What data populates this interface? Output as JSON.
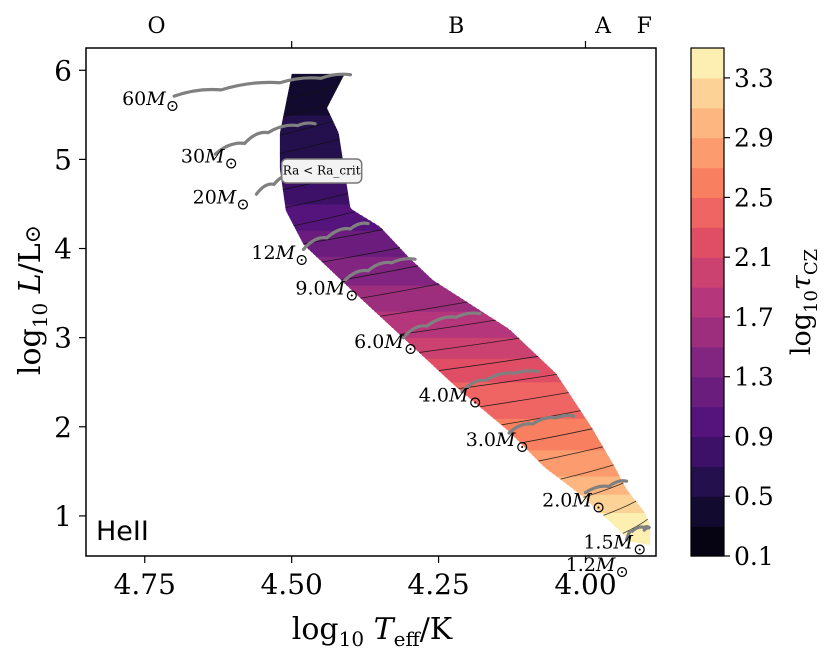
{
  "chart_data": {
    "type": "hr_diagram_heatmap",
    "title": "",
    "panel_label": "HeII",
    "xlabel": "log10 Teff/K",
    "ylabel": "log10 L/L⊙",
    "x_inverted": true,
    "xlim": [
      4.85,
      3.88
    ],
    "ylim": [
      0.55,
      6.25
    ],
    "xticks": [
      4.75,
      4.5,
      4.25,
      4.0
    ],
    "xtick_labels": [
      "4.75",
      "4.50",
      "4.25",
      "4.00"
    ],
    "yticks": [
      1,
      2,
      3,
      4,
      5,
      6
    ],
    "ytick_labels": [
      "1",
      "2",
      "3",
      "4",
      "5",
      "6"
    ],
    "spectral_types": {
      "labels": [
        "O",
        "B",
        "A",
        "F"
      ],
      "label_logT": [
        4.73,
        4.22,
        3.97,
        3.9
      ],
      "boundaries_logT": [
        4.5,
        4.0,
        3.86
      ]
    },
    "colorbar": {
      "label": "log10 τCZ",
      "min": 0.1,
      "max": 3.5,
      "levels": 17,
      "tick_values": [
        0.1,
        0.5,
        0.9,
        1.3,
        1.7,
        2.1,
        2.5,
        2.9,
        3.3
      ],
      "tick_labels": [
        "0.1",
        "0.5",
        "0.9",
        "1.3",
        "1.7",
        "2.1",
        "2.5",
        "2.9",
        "3.3"
      ]
    },
    "annotation": {
      "text": "Ra < Ra_crit",
      "logT": 4.5,
      "logL": 4.87
    },
    "tracks": [
      {
        "mass": "60",
        "label": "60M⊙",
        "label_logT": 4.74,
        "label_logL": 5.68,
        "points": [
          [
            4.7,
            5.71
          ],
          [
            4.62,
            5.78
          ],
          [
            4.52,
            5.86
          ],
          [
            4.45,
            5.91
          ],
          [
            4.4,
            5.95
          ]
        ]
      },
      {
        "mass": "30",
        "label": "30M⊙",
        "label_logT": 4.64,
        "label_logL": 5.03,
        "points": [
          [
            4.63,
            5.06
          ],
          [
            4.58,
            5.18
          ],
          [
            4.54,
            5.3
          ],
          [
            4.49,
            5.38
          ],
          [
            4.46,
            5.4
          ]
        ]
      },
      {
        "mass": "20",
        "label": "20M⊙",
        "label_logT": 4.62,
        "label_logL": 4.57,
        "points": [
          [
            4.56,
            4.61
          ],
          [
            4.53,
            4.72
          ],
          [
            4.5,
            4.82
          ],
          [
            4.47,
            4.88
          ]
        ]
      },
      {
        "mass": "12",
        "label": "12M⊙",
        "label_logT": 4.52,
        "label_logL": 3.95,
        "points": [
          [
            4.48,
            3.99
          ],
          [
            4.44,
            4.12
          ],
          [
            4.4,
            4.22
          ],
          [
            4.37,
            4.28
          ]
        ]
      },
      {
        "mass": "9.0",
        "label": "9.0M⊙",
        "label_logT": 4.44,
        "label_logL": 3.55,
        "points": [
          [
            4.41,
            3.64
          ],
          [
            4.37,
            3.75
          ],
          [
            4.33,
            3.84
          ],
          [
            4.29,
            3.88
          ]
        ]
      },
      {
        "mass": "6.0",
        "label": "6.0M⊙",
        "label_logT": 4.34,
        "label_logL": 2.95,
        "points": [
          [
            4.31,
            3.0
          ],
          [
            4.27,
            3.13
          ],
          [
            4.22,
            3.23
          ],
          [
            4.18,
            3.27
          ]
        ]
      },
      {
        "mass": "4.0",
        "label": "4.0M⊙",
        "label_logT": 4.23,
        "label_logL": 2.35,
        "points": [
          [
            4.21,
            2.39
          ],
          [
            4.17,
            2.52
          ],
          [
            4.12,
            2.6
          ],
          [
            4.08,
            2.62
          ]
        ]
      },
      {
        "mass": "3.0",
        "label": "3.0M⊙",
        "label_logT": 4.15,
        "label_logL": 1.85,
        "points": [
          [
            4.13,
            1.93
          ],
          [
            4.09,
            2.03
          ],
          [
            4.05,
            2.1
          ],
          [
            4.02,
            2.12
          ]
        ]
      },
      {
        "mass": "2.0",
        "label": "2.0M⊙",
        "label_logT": 4.02,
        "label_logL": 1.17,
        "points": [
          [
            4.0,
            1.26
          ],
          [
            3.96,
            1.33
          ],
          [
            3.93,
            1.39
          ]
        ]
      },
      {
        "mass": "1.5",
        "label": "1.5M⊙",
        "label_logT": 3.95,
        "label_logL": 0.7,
        "points": [
          [
            3.93,
            0.73
          ],
          [
            3.92,
            0.83
          ],
          [
            3.9,
            0.87
          ],
          [
            3.89,
            0.86
          ],
          [
            3.9,
            0.84
          ]
        ]
      },
      {
        "mass": "1.2",
        "label": "1.2M⊙",
        "label_logT": 3.98,
        "label_logL": 0.45,
        "points": []
      }
    ],
    "region": {
      "upper_edge": [
        [
          4.41,
          5.96
        ],
        [
          4.44,
          5.58
        ],
        [
          4.42,
          5.3
        ],
        [
          4.4,
          4.45
        ],
        [
          4.35,
          4.25
        ],
        [
          4.3,
          3.9
        ],
        [
          4.26,
          3.65
        ],
        [
          4.13,
          3.1
        ],
        [
          4.05,
          2.6
        ],
        [
          3.99,
          2.0
        ],
        [
          3.95,
          1.55
        ],
        [
          3.93,
          1.3
        ],
        [
          3.9,
          1.05
        ],
        [
          3.89,
          0.9
        ]
      ],
      "lower_edge": [
        [
          4.5,
          5.95
        ],
        [
          4.52,
          5.3
        ],
        [
          4.52,
          4.9
        ],
        [
          4.51,
          4.43
        ],
        [
          4.48,
          4.05
        ],
        [
          4.4,
          3.55
        ],
        [
          4.31,
          3.0
        ],
        [
          4.22,
          2.45
        ],
        [
          4.13,
          1.95
        ],
        [
          4.07,
          1.55
        ],
        [
          4.01,
          1.25
        ],
        [
          3.96,
          0.95
        ],
        [
          3.92,
          0.7
        ],
        [
          3.89,
          0.68
        ]
      ],
      "color_stops": [
        [
          6.0,
          0.45
        ],
        [
          5.0,
          0.55
        ],
        [
          4.5,
          0.9
        ],
        [
          4.0,
          1.25
        ],
        [
          3.5,
          1.55
        ],
        [
          3.0,
          1.9
        ],
        [
          2.5,
          2.3
        ],
        [
          2.0,
          2.55
        ],
        [
          1.5,
          2.85
        ],
        [
          1.2,
          3.15
        ],
        [
          0.9,
          3.4
        ],
        [
          0.7,
          3.5
        ]
      ]
    }
  }
}
